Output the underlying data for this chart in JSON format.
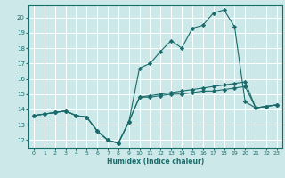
{
  "xlabel": "Humidex (Indice chaleur)",
  "bg_color": "#cce8e8",
  "grid_color": "#ffffff",
  "line_color": "#1a6b6b",
  "xlim": [
    -0.5,
    23.5
  ],
  "ylim": [
    11.5,
    20.8
  ],
  "xticks": [
    0,
    1,
    2,
    3,
    4,
    5,
    6,
    7,
    8,
    9,
    10,
    11,
    12,
    13,
    14,
    15,
    16,
    17,
    18,
    19,
    20,
    21,
    22,
    23
  ],
  "yticks": [
    12,
    13,
    14,
    15,
    16,
    17,
    18,
    19,
    20
  ],
  "line1_x": [
    0,
    1,
    2,
    3,
    4,
    5,
    6,
    7,
    8,
    9,
    10,
    11,
    12,
    13,
    14,
    15,
    16,
    17,
    18,
    19,
    20,
    21,
    22,
    23
  ],
  "line1_y": [
    13.6,
    13.7,
    13.8,
    13.9,
    13.6,
    13.5,
    12.6,
    12.0,
    11.8,
    13.2,
    14.8,
    14.9,
    15.0,
    15.1,
    15.2,
    15.3,
    15.4,
    15.5,
    15.6,
    15.7,
    15.8,
    14.1,
    14.2,
    14.3
  ],
  "line2_x": [
    0,
    1,
    2,
    3,
    4,
    5,
    6,
    7,
    8,
    9,
    10,
    11,
    12,
    13,
    14,
    15,
    16,
    17,
    18,
    19,
    20,
    21,
    22,
    23
  ],
  "line2_y": [
    13.6,
    13.7,
    13.8,
    13.9,
    13.6,
    13.5,
    12.6,
    12.0,
    11.8,
    13.2,
    16.7,
    17.0,
    17.8,
    18.5,
    18.0,
    19.3,
    19.5,
    20.3,
    20.5,
    19.4,
    14.5,
    14.1,
    14.2,
    14.3
  ],
  "line3_x": [
    0,
    1,
    2,
    3,
    4,
    5,
    6,
    7,
    8,
    9,
    10,
    11,
    12,
    13,
    14,
    15,
    16,
    17,
    18,
    19,
    20,
    21,
    22,
    23
  ],
  "line3_y": [
    13.6,
    13.7,
    13.8,
    13.9,
    13.6,
    13.5,
    12.6,
    12.0,
    11.8,
    13.2,
    14.8,
    14.8,
    14.9,
    15.0,
    15.0,
    15.1,
    15.2,
    15.2,
    15.3,
    15.4,
    15.5,
    14.1,
    14.2,
    14.3
  ]
}
